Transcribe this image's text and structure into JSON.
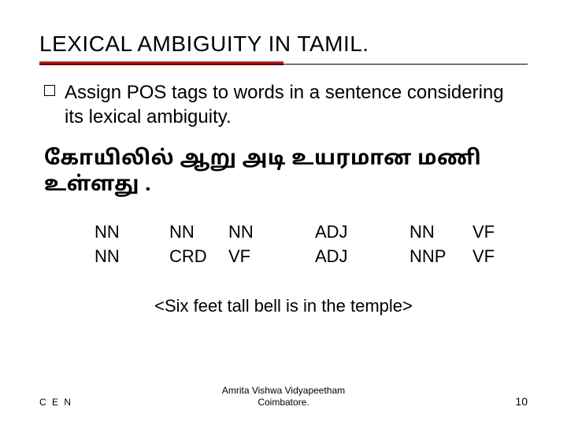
{
  "title": "LEXICAL AMBIGUITY IN TAMIL.",
  "rule": {
    "accent_color": "#b22222",
    "line_color": "#000000"
  },
  "bullet": {
    "text": "Assign POS tags to words in a sentence considering its lexical ambiguity."
  },
  "tamil_sentence": "கோயிலில் ஆறு அடி உயரமான மணி உள்ளது .",
  "pos_table": {
    "rows": [
      {
        "c1": "NN",
        "c2": "NN",
        "c3": "NN",
        "c4": "ADJ",
        "c5": "NN",
        "c6": "VF"
      },
      {
        "c1": "NN",
        "c2": "CRD",
        "c3": "VF",
        "c4": "ADJ",
        "c5": "NNP",
        "c6": "VF"
      }
    ],
    "font_size": 22
  },
  "translation": "<Six feet tall bell is in the temple>",
  "footer": {
    "left": "C E N",
    "center_line1": "Amrita Vishwa Vidyapeetham",
    "center_line2": "Coimbatore.",
    "page_number": "10"
  }
}
